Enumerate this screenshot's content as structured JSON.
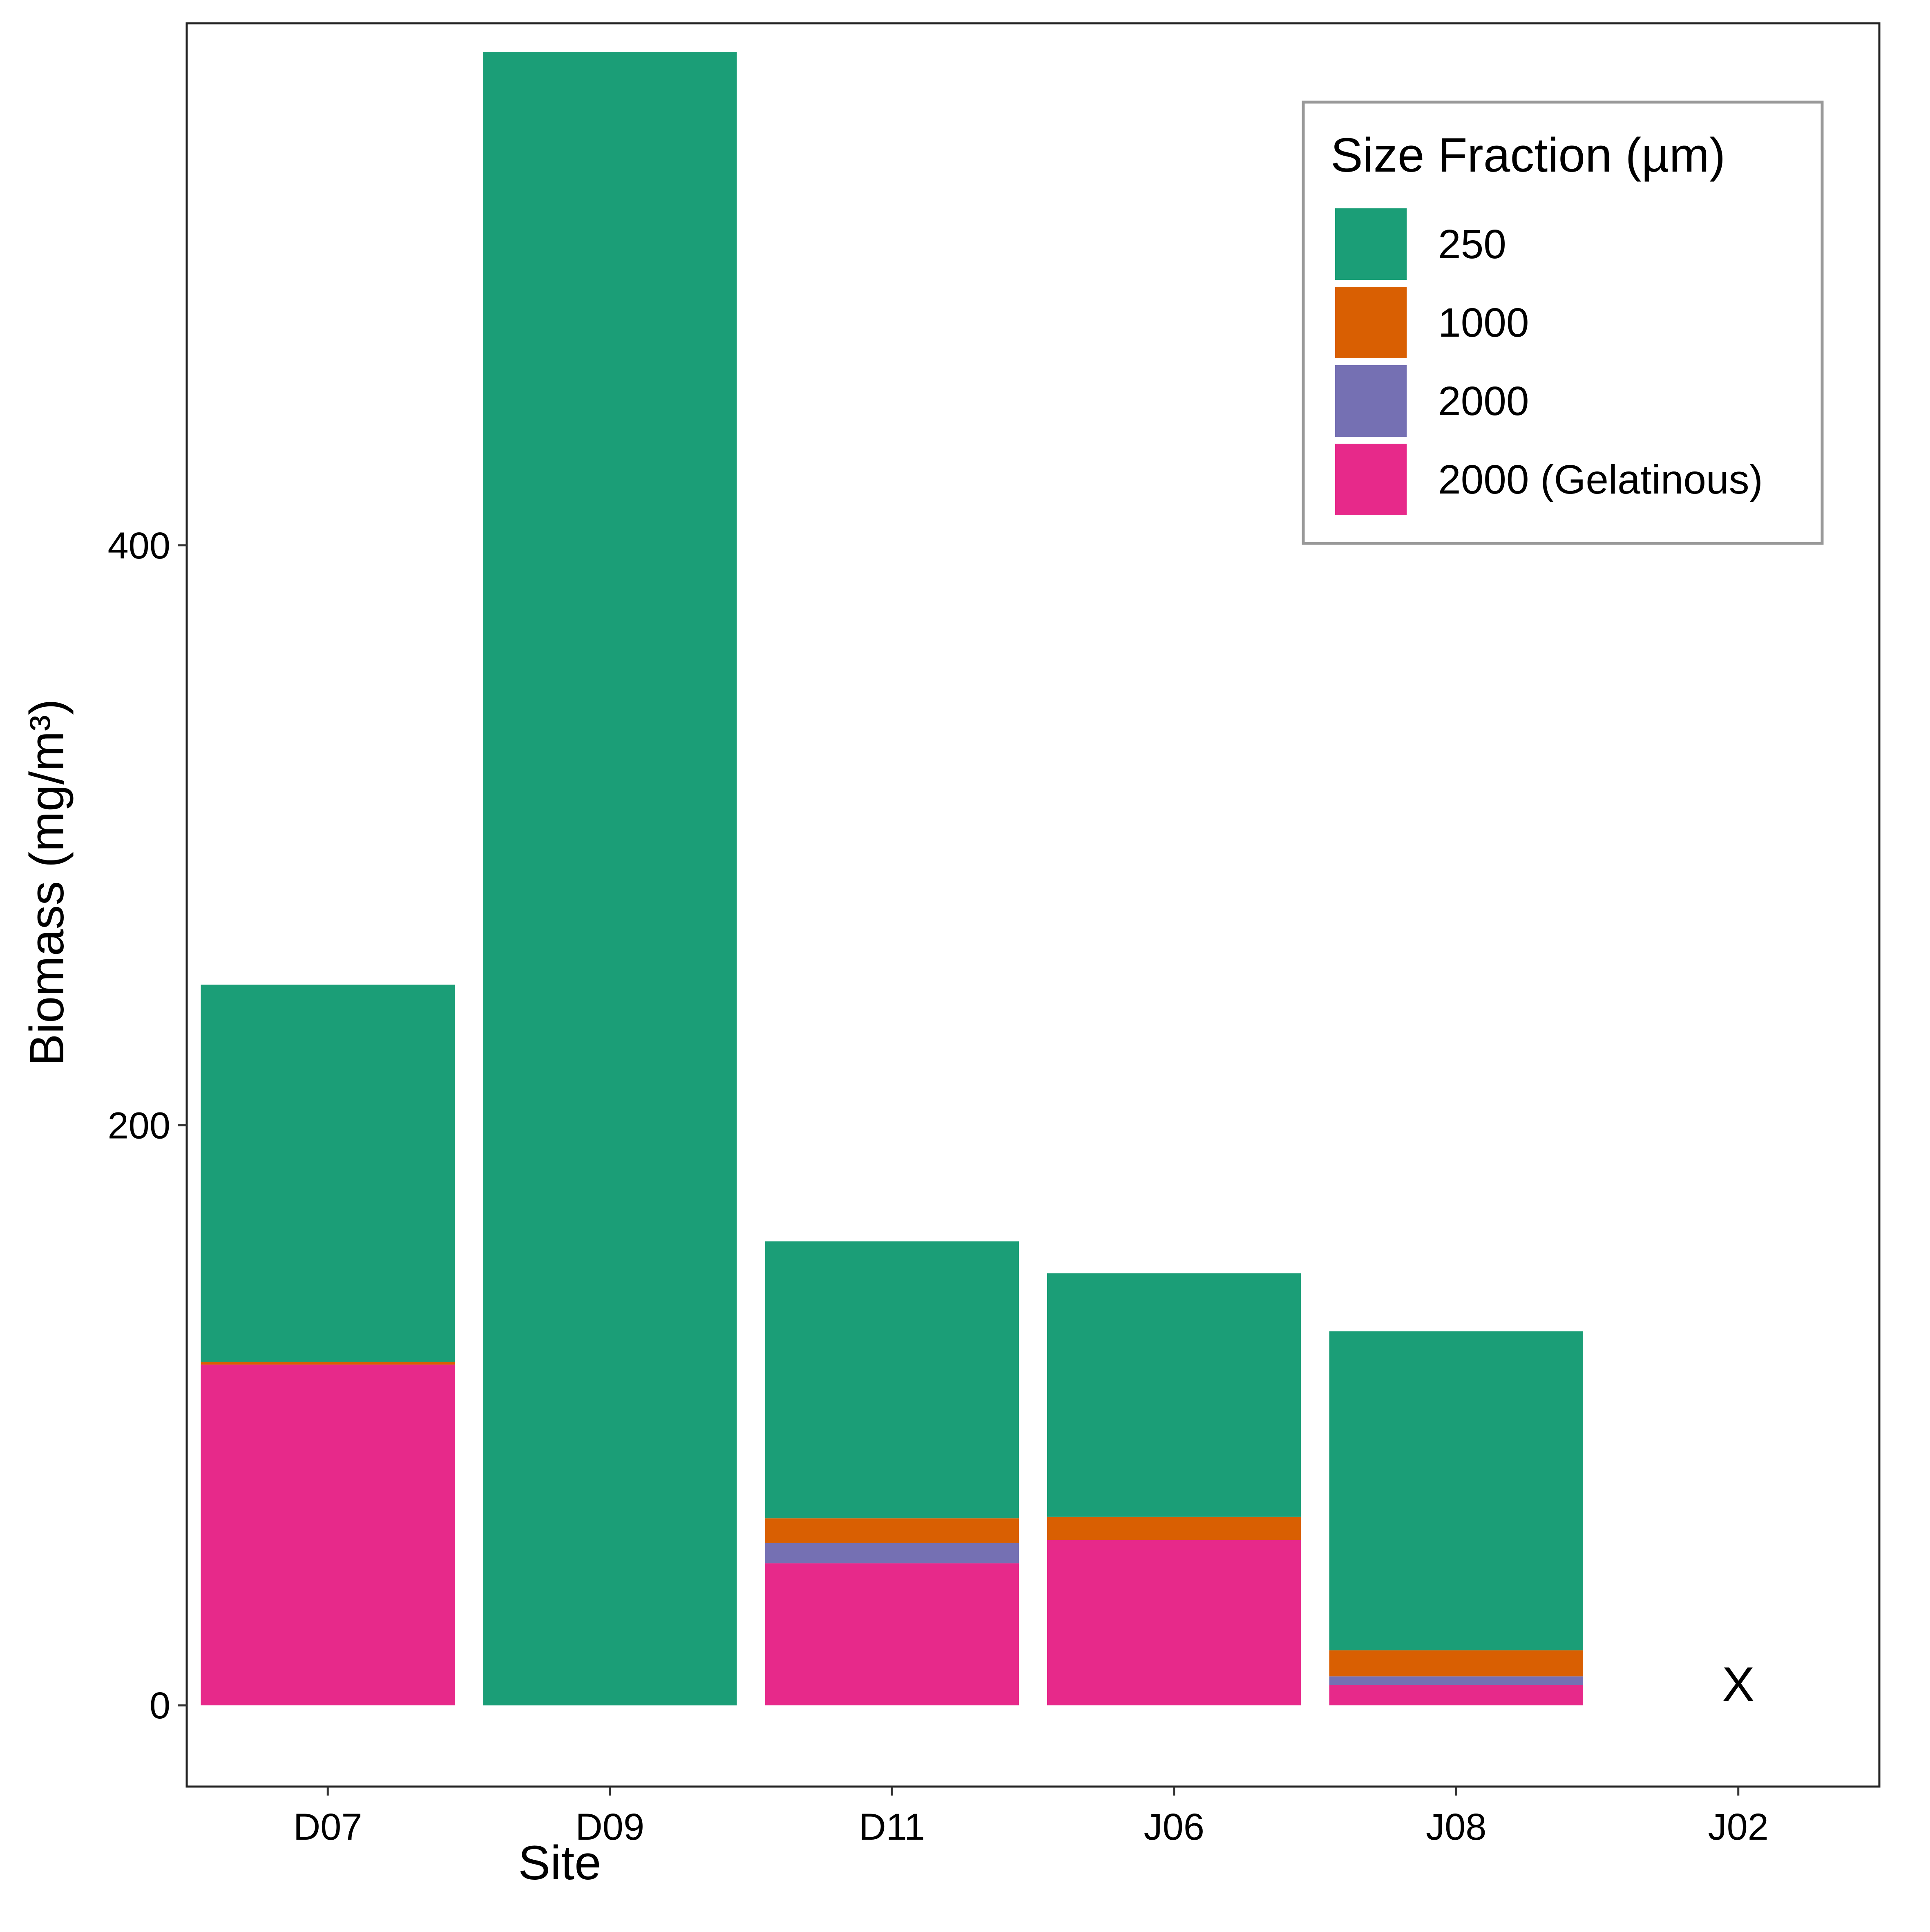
{
  "chart_data": {
    "type": "bar",
    "stacked": true,
    "xlabel": "Site",
    "ylabel": "Biomass (mg/m³)",
    "categories": [
      "D07",
      "D09",
      "D11",
      "J06",
      "J08",
      "J02"
    ],
    "ylim": [
      -28,
      580
    ],
    "yticks": [
      0,
      200,
      400
    ],
    "grid": false,
    "legend": {
      "title": "Size Fraction (µm)",
      "position": "top-right"
    },
    "series": [
      {
        "name": "250",
        "color": "#1B9E77",
        "values": [
          130,
          570,
          95.5,
          84,
          110,
          null
        ]
      },
      {
        "name": "1000",
        "color": "#D95F02",
        "values": [
          1,
          0,
          8.5,
          8,
          9,
          null
        ]
      },
      {
        "name": "2000",
        "color": "#7570B3",
        "values": [
          0,
          0,
          7,
          0,
          3,
          null
        ]
      },
      {
        "name": "2000 (Gelatinous)",
        "color": "#E7298A",
        "values": [
          117.5,
          0,
          49,
          57,
          7,
          null
        ]
      }
    ],
    "annotations": [
      {
        "category": "J02",
        "text": "X"
      }
    ]
  }
}
